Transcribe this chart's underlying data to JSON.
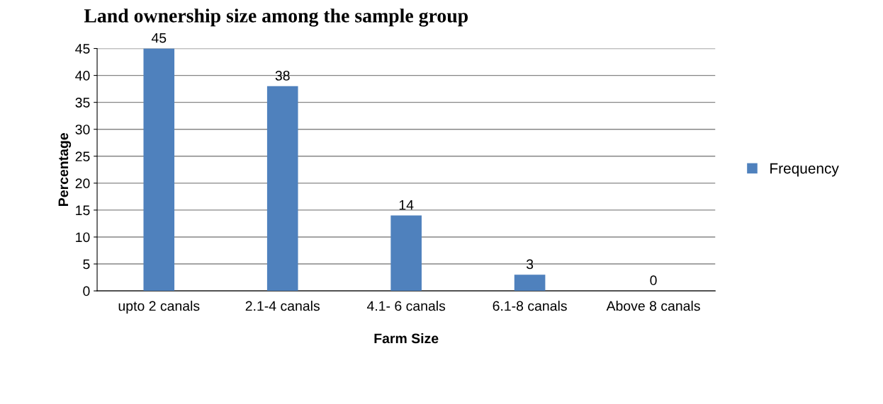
{
  "chart_data": {
    "type": "bar",
    "title": "Land ownership size among the sample group",
    "xlabel": "Farm Size",
    "ylabel": "Percentage",
    "categories": [
      "upto 2 canals",
      "2.1-4 canals",
      "4.1- 6 canals",
      "6.1-8 canals",
      "Above 8 canals"
    ],
    "series": [
      {
        "name": "Frequency",
        "color": "#4f81bd",
        "values": [
          45,
          38,
          14,
          3,
          0
        ]
      }
    ],
    "ylim": [
      0,
      45
    ],
    "yticks": [
      0,
      5,
      10,
      15,
      20,
      25,
      30,
      35,
      40,
      45
    ],
    "grid": "y",
    "legend": "right",
    "data_labels": true
  }
}
